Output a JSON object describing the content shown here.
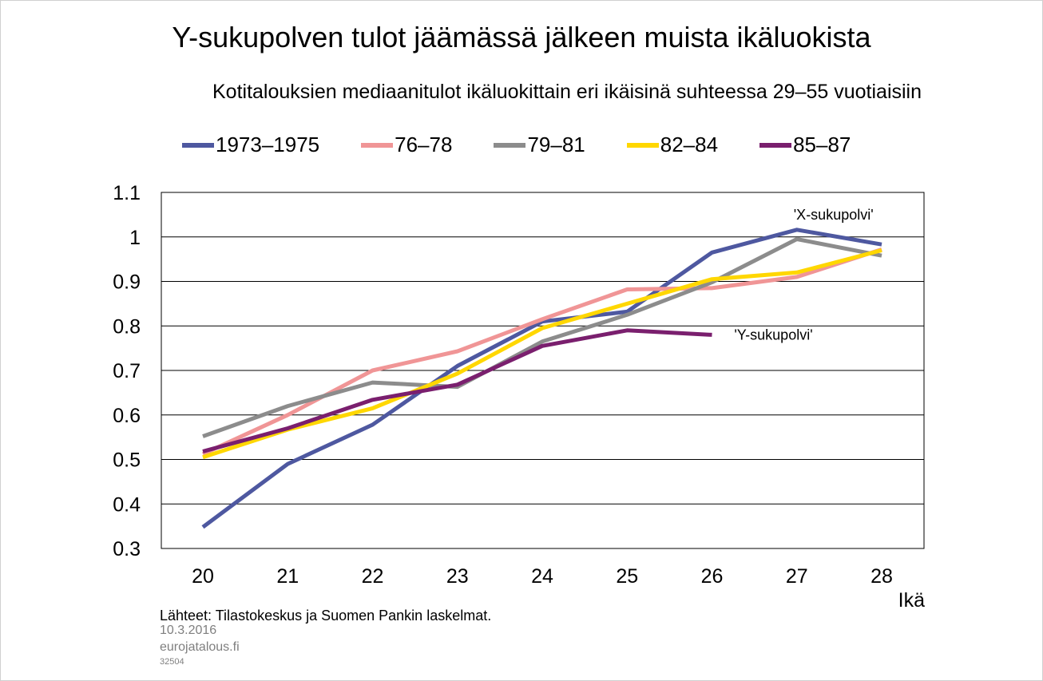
{
  "header": {
    "title": "Y-sukupolven tulot jäämässä jälkeen muista ikäluokista",
    "subtitle": "Kotitalouksien mediaanitulot ikäluokittain eri ikäisinä suhteessa 29–55 vuotiaisiin"
  },
  "footer": {
    "source": "Lähteet: Tilastokeskus ja Suomen Pankin laskelmat.",
    "date": "10.3.2016",
    "site": "eurojatalous.fi",
    "code": "32504"
  },
  "chart_data": {
    "type": "line",
    "xlabel": "Ikä",
    "ylabel": "",
    "x": [
      20,
      21,
      22,
      23,
      24,
      25,
      26,
      27,
      28
    ],
    "ylim": [
      0.3,
      1.1
    ],
    "yticks": [
      0.3,
      0.4,
      0.5,
      0.6,
      0.7,
      0.8,
      0.9,
      1,
      1.1
    ],
    "ytick_labels": [
      "0.3",
      "0.4",
      "0.5",
      "0.6",
      "0.7",
      "0.8",
      "0.9",
      "1",
      "1.1"
    ],
    "grid": "horizontal",
    "legend": "top",
    "series": [
      {
        "name": "1973–1975",
        "color": "#4e58a0",
        "values": [
          0.348,
          0.49,
          0.578,
          0.71,
          0.81,
          0.832,
          0.965,
          1.016,
          0.983
        ]
      },
      {
        "name": "76–78",
        "color": "#f09596",
        "values": [
          0.512,
          0.6,
          0.7,
          0.743,
          0.815,
          0.882,
          0.885,
          0.91,
          0.972
        ]
      },
      {
        "name": "79–81",
        "color": "#8c8c8c",
        "values": [
          0.552,
          0.62,
          0.673,
          0.663,
          0.765,
          0.825,
          0.898,
          0.995,
          0.958
        ]
      },
      {
        "name": "82–84",
        "color": "#ffd700",
        "values": [
          0.505,
          0.567,
          0.615,
          0.693,
          0.795,
          0.85,
          0.905,
          0.92,
          0.97
        ]
      },
      {
        "name": "85–87",
        "color": "#7a1f6e",
        "values": [
          0.518,
          0.57,
          0.634,
          0.668,
          0.755,
          0.79,
          0.78,
          null,
          null
        ]
      }
    ],
    "annotations": [
      {
        "text": "'X-sukupolvi'",
        "x": 27,
        "y": 1.05
      },
      {
        "text": "'Y-sukupolvi'",
        "x": 26.3,
        "y": 0.78
      }
    ]
  }
}
